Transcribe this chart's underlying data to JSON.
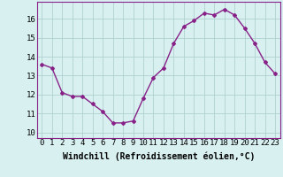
{
  "x": [
    0,
    1,
    2,
    3,
    4,
    5,
    6,
    7,
    8,
    9,
    10,
    11,
    12,
    13,
    14,
    15,
    16,
    17,
    18,
    19,
    20,
    21,
    22,
    23
  ],
  "y": [
    13.6,
    13.4,
    12.1,
    11.9,
    11.9,
    11.5,
    11.1,
    10.5,
    10.5,
    10.6,
    11.8,
    12.9,
    13.4,
    14.7,
    15.6,
    15.9,
    16.3,
    16.2,
    16.5,
    16.2,
    15.5,
    14.7,
    13.7,
    13.1
  ],
  "line_color": "#882288",
  "marker": "D",
  "marker_size": 2,
  "bg_color": "#d8f0f0",
  "grid_color": "#b0d0d0",
  "xlabel": "Windchill (Refroidissement éolien,°C)",
  "xlabel_fontsize": 7,
  "xtick_labels": [
    "0",
    "1",
    "2",
    "3",
    "4",
    "5",
    "6",
    "7",
    "8",
    "9",
    "10",
    "11",
    "12",
    "13",
    "14",
    "15",
    "16",
    "17",
    "18",
    "19",
    "20",
    "21",
    "22",
    "23"
  ],
  "ytick_labels": [
    "10",
    "11",
    "12",
    "13",
    "14",
    "15",
    "16"
  ],
  "ylim": [
    9.7,
    16.9
  ],
  "xlim": [
    -0.5,
    23.5
  ],
  "tick_fontsize": 6.5,
  "line_width": 1.0
}
